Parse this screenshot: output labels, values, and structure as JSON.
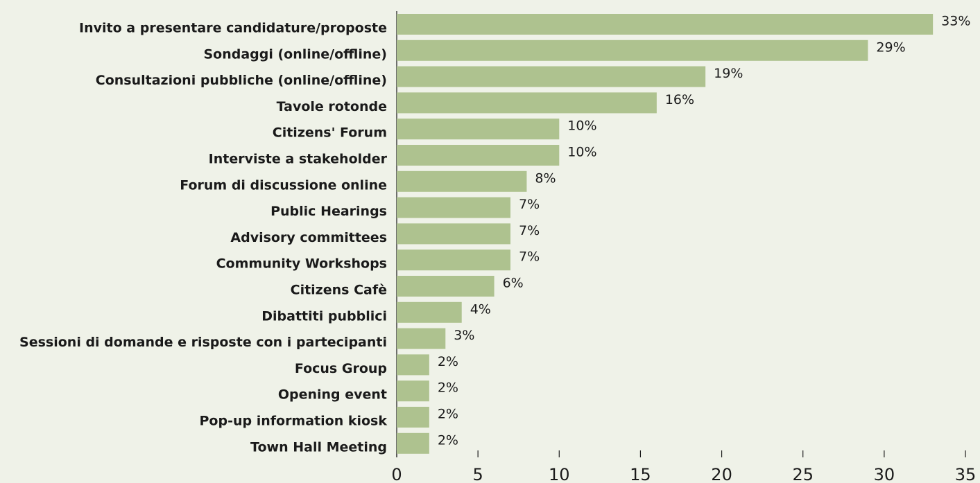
{
  "chart_data": {
    "type": "bar",
    "orientation": "horizontal",
    "categories": [
      "Invito a presentare candidature/proposte",
      "Sondaggi (online/offline)",
      "Consultazioni pubbliche (online/offline)",
      "Tavole rotonde",
      "Citizens' Forum",
      "Interviste a stakeholder",
      "Forum di discussione online",
      "Public Hearings",
      "Advisory committees",
      "Community Workshops",
      "Citizens Cafè",
      "Dibattiti pubblici",
      "Sessioni di domande e risposte con i partecipanti",
      "Focus Group",
      "Opening event",
      "Pop-up information kiosk",
      "Town Hall Meeting"
    ],
    "values": [
      33,
      29,
      19,
      16,
      10,
      10,
      8,
      7,
      7,
      7,
      6,
      4,
      3,
      2,
      2,
      2,
      2
    ],
    "value_labels": [
      "33%",
      "29%",
      "19%",
      "16%",
      "10%",
      "10%",
      "8%",
      "7%",
      "7%",
      "7%",
      "6%",
      "4%",
      "3%",
      "2%",
      "2%",
      "2%",
      "2%"
    ],
    "color": "#aec28f",
    "xlim": [
      0,
      35
    ],
    "xticks": [
      0,
      5,
      10,
      15,
      20,
      25,
      30,
      35
    ]
  }
}
